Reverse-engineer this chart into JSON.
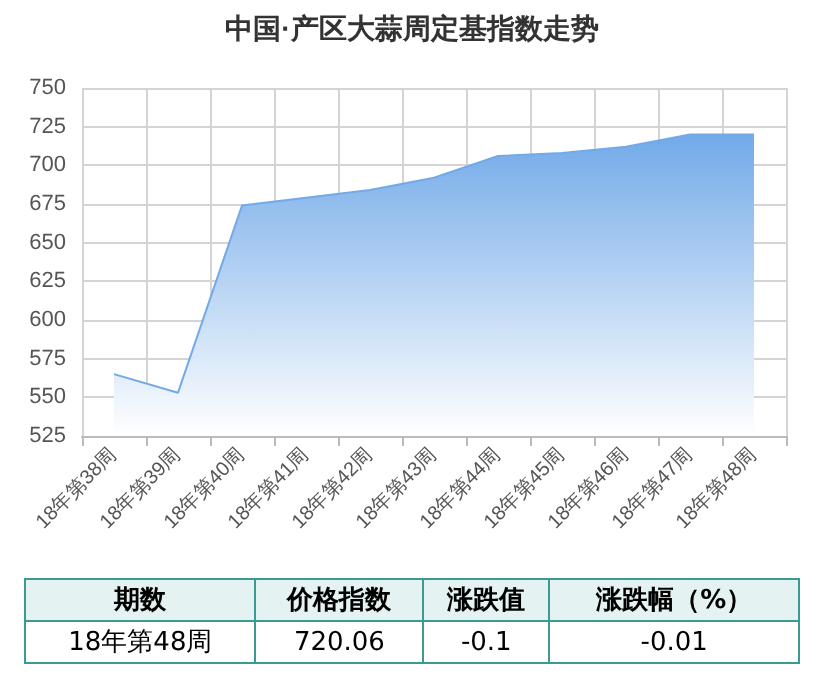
{
  "chart_data": [
    {
      "type": "area",
      "title": "中国·产区大蒜周定基指数走势",
      "categories": [
        "18年第38周",
        "18年第39周",
        "18年第40周",
        "18年第41周",
        "18年第42周",
        "18年第43周",
        "18年第44周",
        "18年第45周",
        "18年第46周",
        "18年第47周",
        "18年第48周"
      ],
      "series": [
        {
          "color": "#72aae8",
          "values": [
            565,
            553,
            674,
            679,
            684,
            692,
            706,
            708,
            712,
            720,
            720
          ]
        }
      ],
      "ylim": [
        525,
        750
      ],
      "yticks": [
        525,
        550,
        575,
        600,
        625,
        650,
        675,
        700,
        725,
        750
      ],
      "grid": true
    },
    {
      "type": "other",
      "categories": [
        "期数",
        "价格指数",
        "涨跌值",
        "涨跌幅（%）"
      ],
      "cell_labels": [
        [
          "18年第48周",
          "720.06",
          "-0.1",
          "-0.01"
        ]
      ]
    }
  ]
}
